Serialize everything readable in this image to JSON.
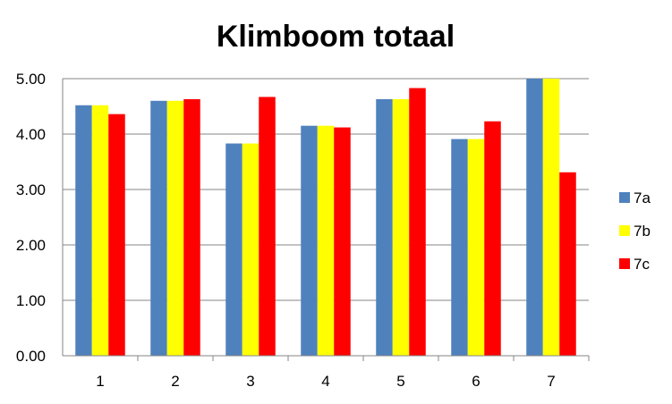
{
  "chart_data": {
    "type": "bar",
    "title": "Klimboom totaal",
    "xlabel": "",
    "ylabel": "",
    "categories": [
      "1",
      "2",
      "3",
      "4",
      "5",
      "6",
      "7"
    ],
    "series": [
      {
        "name": "7a",
        "color": "#4F81BD",
        "values": [
          4.52,
          4.6,
          3.83,
          4.15,
          4.63,
          3.91,
          5.0
        ]
      },
      {
        "name": "7b",
        "color": "#FFFF00",
        "values": [
          4.52,
          4.6,
          3.83,
          4.15,
          4.63,
          3.91,
          5.0
        ]
      },
      {
        "name": "7c",
        "color": "#FF0000",
        "values": [
          4.36,
          4.63,
          4.67,
          4.12,
          4.83,
          4.23,
          3.31
        ]
      }
    ],
    "ylim": [
      0,
      5
    ],
    "yticks": [
      "0.00",
      "1.00",
      "2.00",
      "3.00",
      "4.00",
      "5.00"
    ],
    "grid": true,
    "legend_position": "right"
  }
}
